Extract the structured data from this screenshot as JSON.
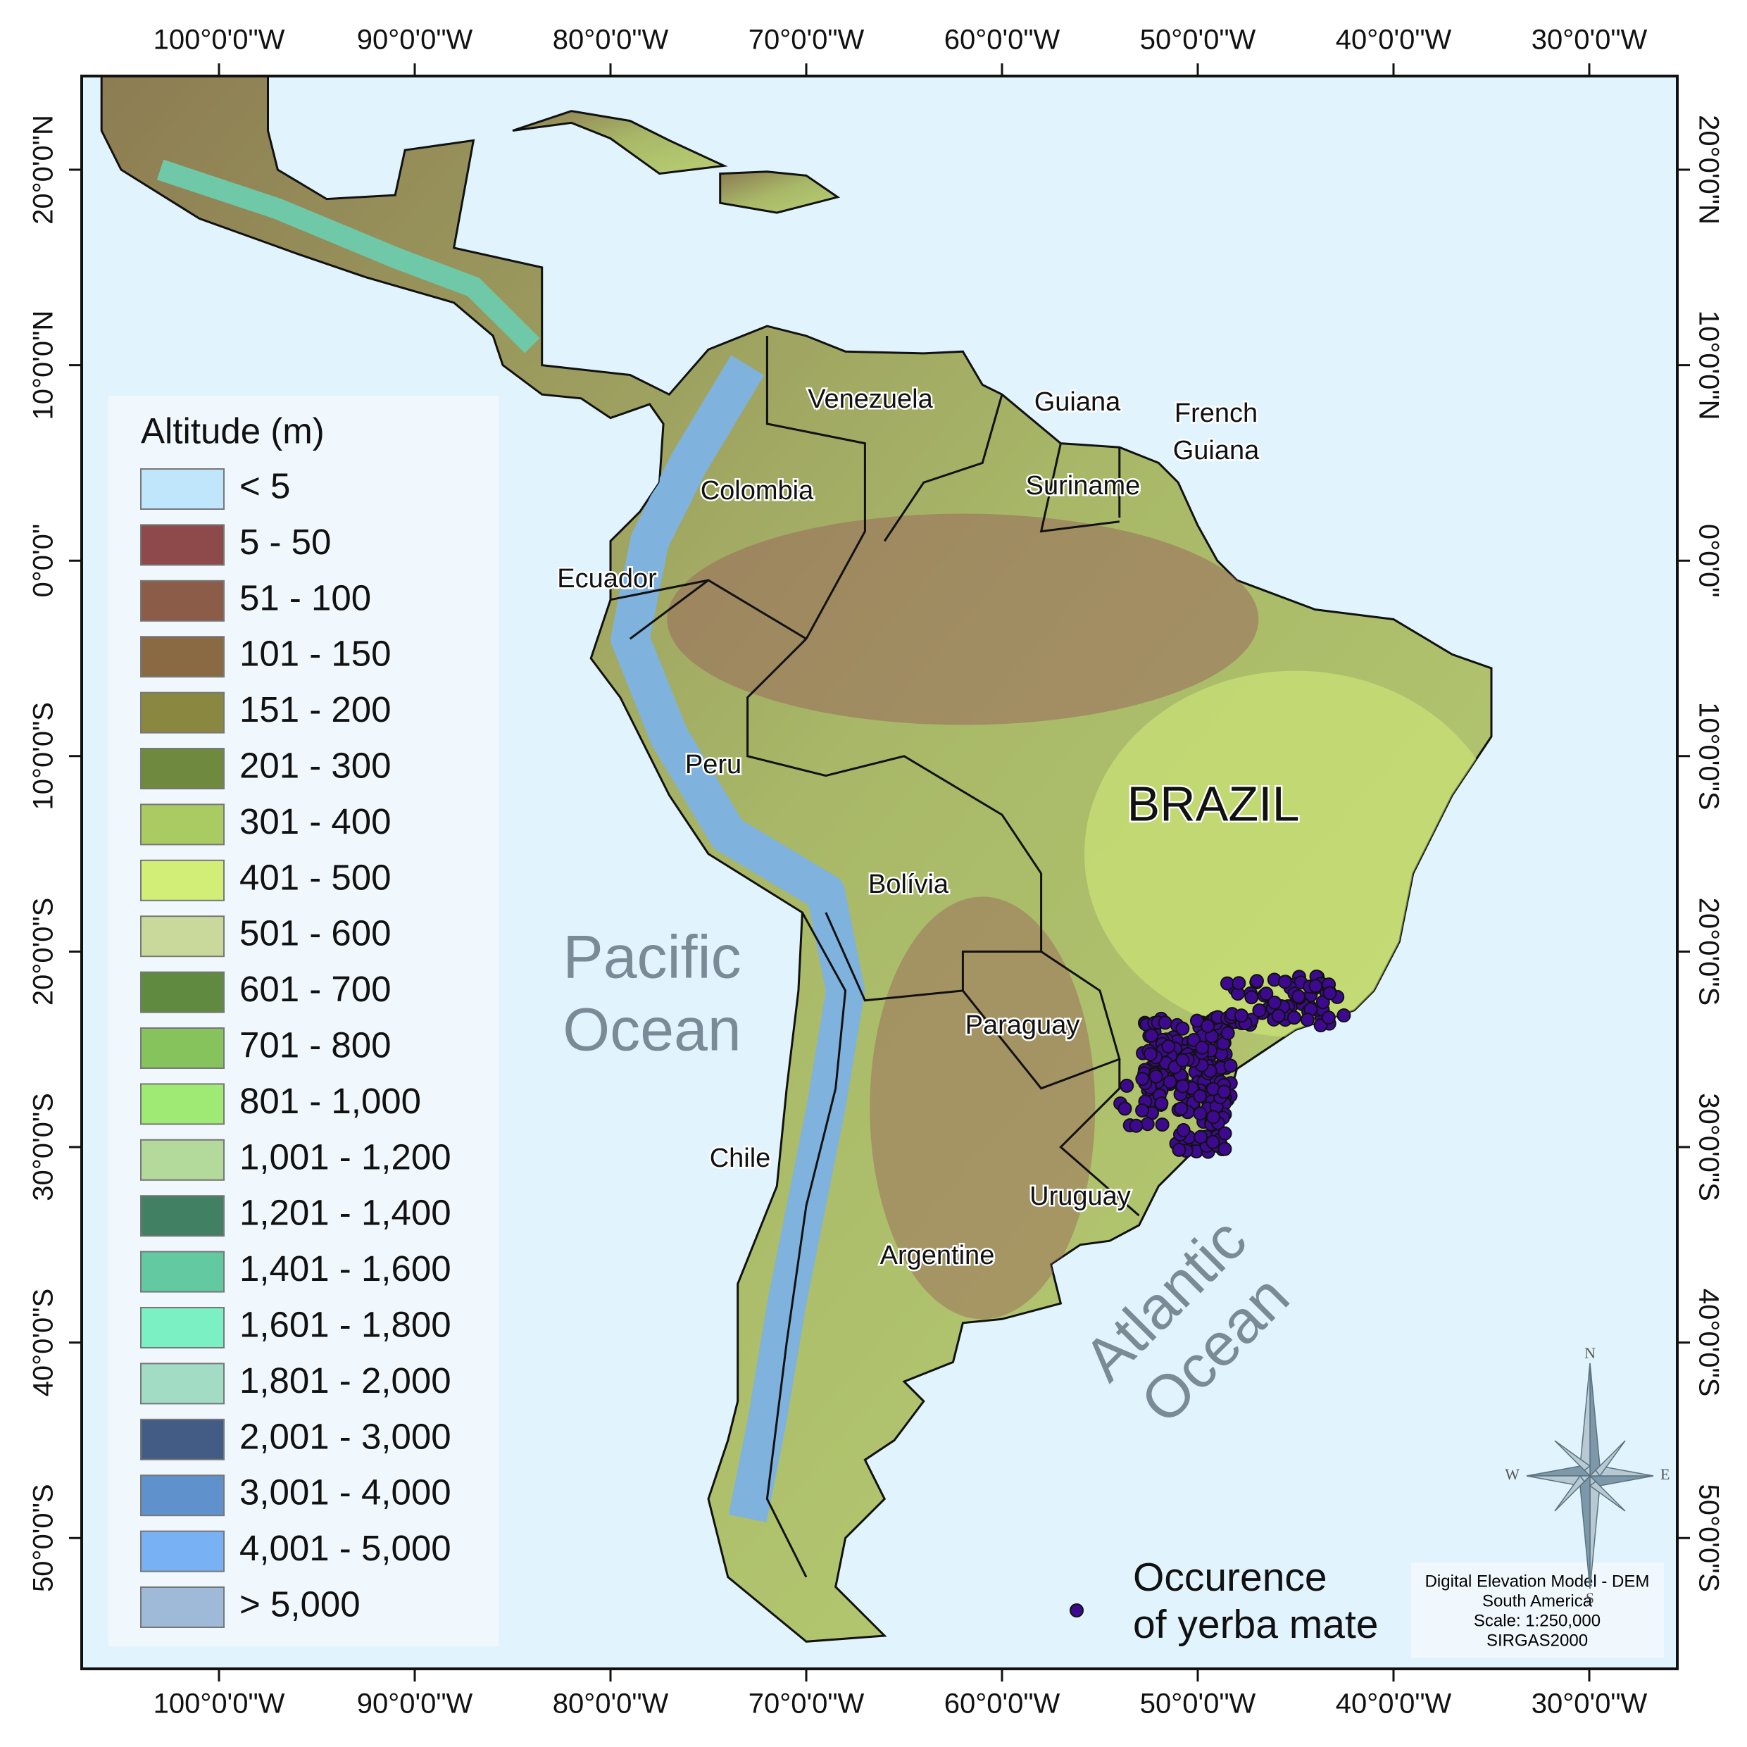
{
  "graticule": {
    "longitudes": [
      "100°0'0\"W",
      "90°0'0\"W",
      "80°0'0\"W",
      "70°0'0\"W",
      "60°0'0\"W",
      "50°0'0\"W",
      "40°0'0\"W",
      "30°0'0\"W"
    ],
    "latitudes": [
      "20°0'0\"N",
      "10°0'0\"N",
      "0°0'0\"",
      "10°0'0\"S",
      "20°0'0\"S",
      "30°0'0\"S",
      "40°0'0\"S",
      "50°0'0\"S"
    ]
  },
  "legend": {
    "title": "Altitude (m)",
    "items": [
      {
        "label": "< 5",
        "color": "#bfe6fb"
      },
      {
        "label": "5 - 50",
        "color": "#8e4a4a"
      },
      {
        "label": "51 - 100",
        "color": "#8b5c47"
      },
      {
        "label": "101 - 150",
        "color": "#8a6a43"
      },
      {
        "label": "151 - 200",
        "color": "#8a8741"
      },
      {
        "label": "201 - 300",
        "color": "#6f8a3f"
      },
      {
        "label": "301 - 400",
        "color": "#a9cb62"
      },
      {
        "label": "401 - 500",
        "color": "#d2ee77"
      },
      {
        "label": "501 - 600",
        "color": "#c9d99b"
      },
      {
        "label": "601 - 700",
        "color": "#5f8a40"
      },
      {
        "label": "701 - 800",
        "color": "#86c35c"
      },
      {
        "label": "801 - 1,000",
        "color": "#9fea74"
      },
      {
        "label": "1,001 - 1,200",
        "color": "#b3d99b"
      },
      {
        "label": "1,201 - 1,400",
        "color": "#428063"
      },
      {
        "label": "1,401 - 1,600",
        "color": "#63c9a1"
      },
      {
        "label": "1,601 - 1,800",
        "color": "#7bf0c3"
      },
      {
        "label": "1,801 - 2,000",
        "color": "#a2dcc4"
      },
      {
        "label": "2,001 - 3,000",
        "color": "#425c86"
      },
      {
        "label": "3,001 - 4,000",
        "color": "#5f92cc"
      },
      {
        "label": "4,001 - 5,000",
        "color": "#78b2f4"
      },
      {
        "label": "> 5,000",
        "color": "#9fbad8"
      }
    ]
  },
  "countries": [
    "Venezuela",
    "Guiana",
    "French",
    "Guiana",
    "Suriname",
    "Colombia",
    "Ecuador",
    "Peru",
    "BRAZIL",
    "Bolívia",
    "Paraguay",
    "Chile",
    "Uruguay",
    "Argentine"
  ],
  "oceans": {
    "pacific": [
      "Pacific",
      "Ocean"
    ],
    "atlantic": [
      "Atlantic",
      "Ocean"
    ]
  },
  "occurrence": {
    "label": [
      "Occurence",
      "of yerba mate"
    ],
    "color": "#3d0a8f"
  },
  "info": [
    "Digital Elevation Model - DEM",
    "South America",
    "Scale: 1:250,000",
    "SIRGAS2000"
  ],
  "compass": {
    "n": "N",
    "e": "E",
    "s": "S",
    "w": "W"
  }
}
